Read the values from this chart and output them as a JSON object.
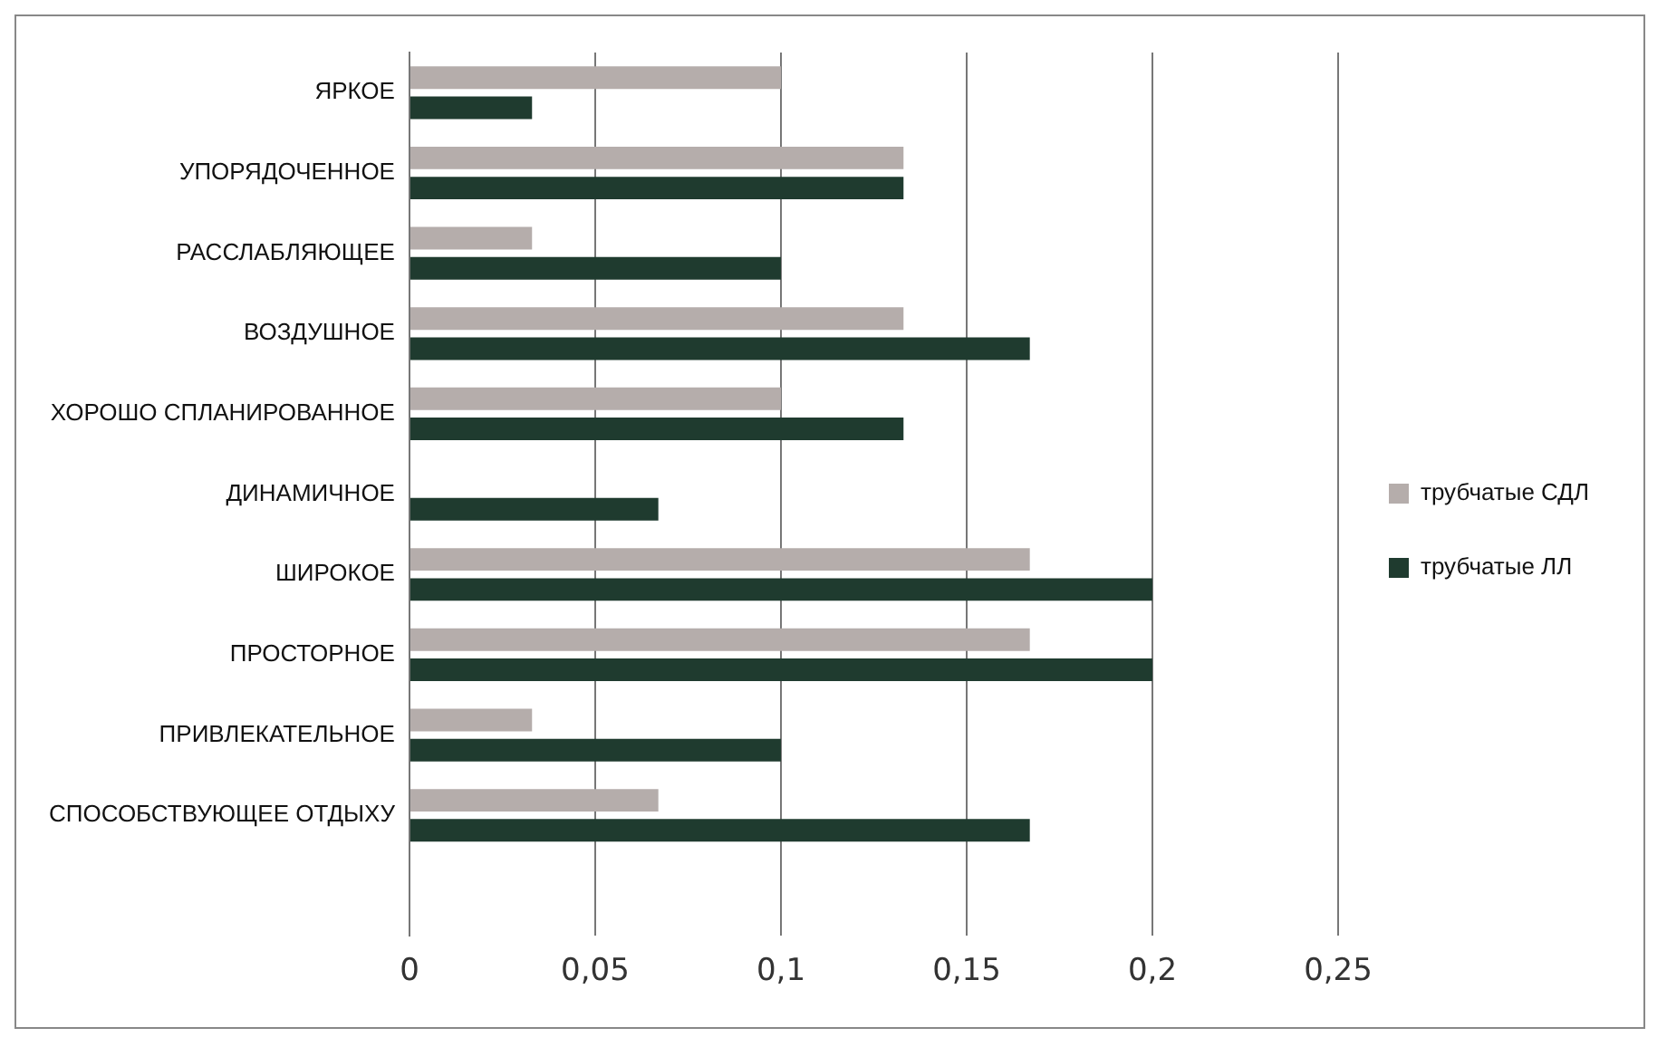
{
  "chart_data": {
    "type": "bar",
    "orientation": "horizontal",
    "categories": [
      "ЯРКОЕ",
      "УПОРЯДОЧЕННОЕ",
      "РАССЛАБЛЯЮЩЕЕ",
      "ВОЗДУШНОЕ",
      "ХОРОШО СПЛАНИРОВАННОЕ",
      "ДИНАМИЧНОЕ",
      "ШИРОКОЕ",
      "ПРОСТОРНОЕ",
      "ПРИВЛЕКАТЕЛЬНОЕ",
      "СПОСОБСТВУЮЩЕЕ ОТДЫХУ",
      null
    ],
    "series": [
      {
        "name": "трубчатые СДЛ",
        "color": "#b5adab",
        "values": [
          0.1,
          0.133,
          0.033,
          0.133,
          0.1,
          0,
          0.167,
          0.167,
          0.033,
          0.067,
          null
        ]
      },
      {
        "name": "трубчатые ЛЛ",
        "color": "#1f3b2f",
        "values": [
          0.033,
          0.133,
          0.1,
          0.167,
          0.133,
          0.067,
          0.2,
          0.2,
          0.1,
          0.167,
          null
        ]
      }
    ],
    "xlim": [
      0,
      0.25
    ],
    "xticks": [
      0,
      {
        "value": 0.05,
        "label": "0,05"
      },
      {
        "value": 0.1,
        "label": "0,1"
      },
      {
        "value": 0.15,
        "label": "0,15"
      },
      {
        "value": 0.2,
        "label": "0,2"
      },
      {
        "value": 0.25,
        "label": "0,25"
      }
    ],
    "grid": "x",
    "legend": "right"
  }
}
